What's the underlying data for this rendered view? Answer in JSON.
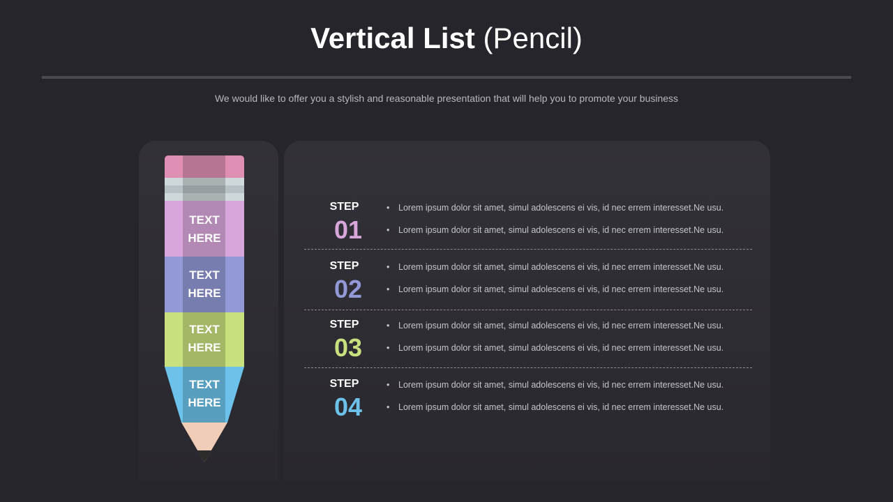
{
  "header": {
    "title_bold": "Vertical List",
    "title_light": "(Pencil)",
    "subtitle": "We would like to offer you a stylish and reasonable presentation that will help you to promote your business"
  },
  "pencil": {
    "segments": [
      {
        "label": "TEXT\nHERE",
        "color": "#d9a6dc"
      },
      {
        "label": "TEXT\nHERE",
        "color": "#9299d6"
      },
      {
        "label": "TEXT\nHERE",
        "color": "#c9e07e"
      },
      {
        "label": "TEXT\nHERE",
        "color": "#6cc2ea"
      }
    ],
    "eraser_color": "#df8fb3",
    "wood_color": "#efcdb6",
    "lead_color": "#2e2b2b"
  },
  "steps": [
    {
      "word": "STEP",
      "number": "01",
      "color": "#d9a6dc",
      "bullets": [
        "Lorem ipsum dolor sit amet, simul adolescens ei vis, id nec errem interesset.Ne usu.",
        "Lorem ipsum dolor sit amet, simul adolescens ei vis, id nec errem interesset.Ne usu."
      ]
    },
    {
      "word": "STEP",
      "number": "02",
      "color": "#9299d6",
      "bullets": [
        "Lorem ipsum dolor sit amet, simul adolescens ei vis, id nec errem interesset.Ne usu.",
        "Lorem ipsum dolor sit amet, simul adolescens ei vis, id nec errem interesset.Ne usu."
      ]
    },
    {
      "word": "STEP",
      "number": "03",
      "color": "#c9e07e",
      "bullets": [
        "Lorem ipsum dolor sit amet, simul adolescens ei vis, id nec errem interesset.Ne usu.",
        "Lorem ipsum dolor sit amet, simul adolescens ei vis, id nec errem interesset.Ne usu."
      ]
    },
    {
      "word": "STEP",
      "number": "04",
      "color": "#6cc2ea",
      "bullets": [
        "Lorem ipsum dolor sit amet, simul adolescens ei vis, id nec errem interesset.Ne usu.",
        "Lorem ipsum dolor sit amet, simul adolescens ei vis, id nec errem interesset.Ne usu."
      ]
    }
  ]
}
